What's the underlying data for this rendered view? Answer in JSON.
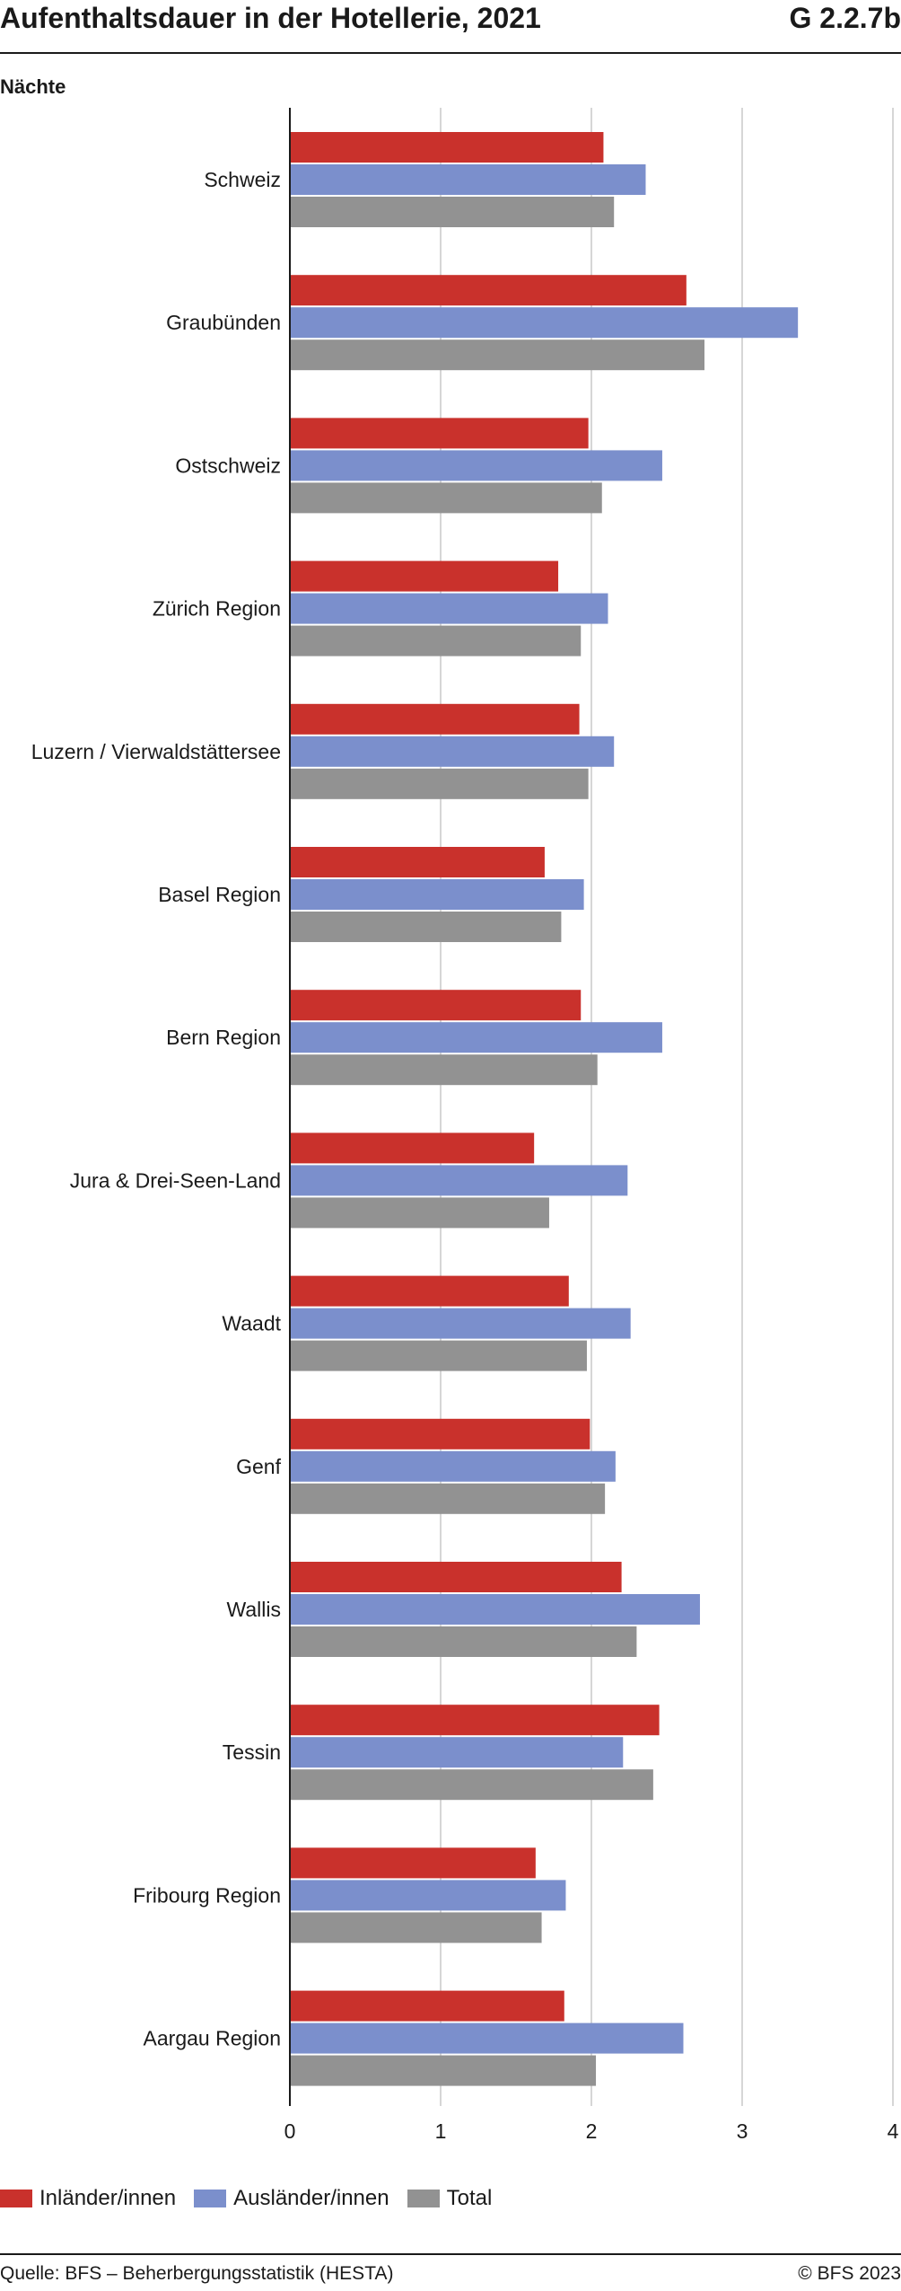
{
  "header": {
    "title": "Aufenthaltsdauer in der Hotellerie, 2021",
    "code": "G 2.2.7b"
  },
  "footer": {
    "source": "Quelle: BFS – Beherbergungsstatistik (HESTA)",
    "copyright": "© BFS 2023"
  },
  "colors": {
    "inland": "#c9312c",
    "ausland": "#7b8fcc",
    "total": "#929292",
    "grid": "#c8c8c8",
    "axis": "#1a1a1a"
  },
  "chart_data": {
    "type": "bar",
    "orientation": "horizontal",
    "ylabel": "Nächte",
    "categories": [
      "Schweiz",
      "Graubünden",
      "Ostschweiz",
      "Zürich Region",
      "Luzern / Vierwaldstättersee",
      "Basel Region",
      "Bern Region",
      "Jura & Drei-Seen-Land",
      "Waadt",
      "Genf",
      "Wallis",
      "Tessin",
      "Fribourg Region",
      "Aargau Region"
    ],
    "series": [
      {
        "name": "Inländer/innen",
        "color": "#c9312c",
        "values": [
          2.08,
          2.63,
          1.98,
          1.78,
          1.92,
          1.69,
          1.93,
          1.62,
          1.85,
          1.99,
          2.2,
          2.45,
          1.63,
          1.82
        ]
      },
      {
        "name": "Ausländer/innen",
        "color": "#7b8fcc",
        "values": [
          2.36,
          3.37,
          2.47,
          2.11,
          2.15,
          1.95,
          2.47,
          2.24,
          2.26,
          2.16,
          2.72,
          2.21,
          1.83,
          2.61
        ]
      },
      {
        "name": "Total",
        "color": "#929292",
        "values": [
          2.15,
          2.75,
          2.07,
          1.93,
          1.98,
          1.8,
          2.04,
          1.72,
          1.97,
          2.09,
          2.3,
          2.41,
          1.67,
          2.03
        ]
      }
    ],
    "xlim": [
      0,
      4
    ],
    "xticks": [
      "0",
      "1",
      "2",
      "3",
      "4"
    ],
    "grid": true,
    "legend": "bottom-left"
  }
}
